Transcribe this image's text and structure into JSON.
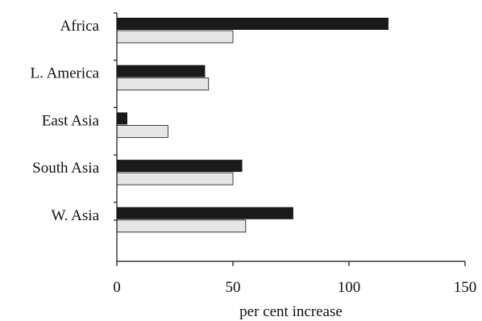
{
  "chart_data": {
    "type": "bar",
    "orientation": "horizontal",
    "categories": [
      "Africa",
      "L. America",
      "East Asia",
      "South Asia",
      "W. Asia"
    ],
    "series": [
      {
        "values": [
          117,
          38,
          4.5,
          54,
          76
        ],
        "color": "#1a1a1a"
      },
      {
        "values": [
          50,
          39.5,
          22,
          50,
          55.5
        ],
        "color": "#e6e6e6"
      }
    ],
    "xlabel": "per cent increase",
    "ylabel": "",
    "xlim": [
      0,
      150
    ],
    "xticks": [
      "0",
      "50",
      "100",
      "150"
    ],
    "grid": false
  }
}
